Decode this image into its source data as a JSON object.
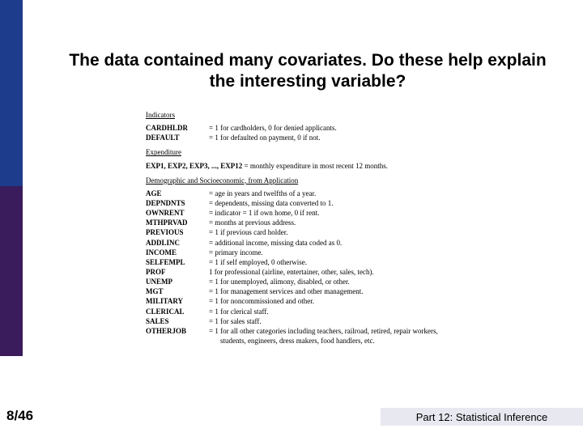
{
  "title": "The data contained many covariates. Do these help explain the interesting variable?",
  "sections": [
    {
      "label": "Indicators",
      "items": [
        {
          "name": "CARDHLDR",
          "desc": "= 1 for cardholders, 0 for denied applicants."
        },
        {
          "name": "DEFAULT",
          "desc": "= 1 for defaulted on payment, 0 if not."
        }
      ]
    },
    {
      "label": "Expenditure",
      "items": [
        {
          "name": "EXP1, EXP2, EXP3, ..., EXP12",
          "wide": true,
          "desc": "= monthly expenditure in most recent 12 months."
        }
      ]
    },
    {
      "label": "Demographic and Socioeconomic, from Application",
      "items": [
        {
          "name": "AGE",
          "desc": "= age in years and twelfths of a year."
        },
        {
          "name": "DEPNDNTS",
          "desc": "= dependents, missing data converted to 1."
        },
        {
          "name": "OWNRENT",
          "desc": "= indicator = 1 if own home, 0 if rent."
        },
        {
          "name": "MTHPRVAD",
          "desc": "= months at previous address."
        },
        {
          "name": "PREVIOUS",
          "desc": "= 1 if previous card holder."
        },
        {
          "name": "ADDLINC",
          "desc": "= additional income, missing data coded as 0."
        },
        {
          "name": "INCOME",
          "desc": "= primary income."
        },
        {
          "name": "SELFEMPL",
          "desc": "= 1 if self employed, 0 otherwise."
        },
        {
          "name": "PROF",
          "desc": "  1 for professional (airline, entertainer, other, sales, tech)."
        },
        {
          "name": "UNEMP",
          "desc": "= 1 for unemployed, alimony, disabled, or other."
        },
        {
          "name": "MGT",
          "desc": "= 1 for management services and other management."
        },
        {
          "name": "MILITARY",
          "desc": "= 1 for noncommissioned and other."
        },
        {
          "name": "CLERICAL",
          "desc": "= 1 for clerical staff."
        },
        {
          "name": "SALES",
          "desc": "= 1 for sales staff."
        },
        {
          "name": "OTHERJOB",
          "desc": "= 1 for all other categories including teachers, railroad, retired, repair workers,",
          "cont": "students, engineers, dress makers, food handlers, etc."
        }
      ]
    }
  ],
  "footer": {
    "page": "8/46",
    "part": "Part 12: Statistical Inference"
  },
  "colors": {
    "bar_top": "#1e3c8c",
    "bar_bottom": "#3a1c5c",
    "footer_band": "#e8e8f0"
  }
}
